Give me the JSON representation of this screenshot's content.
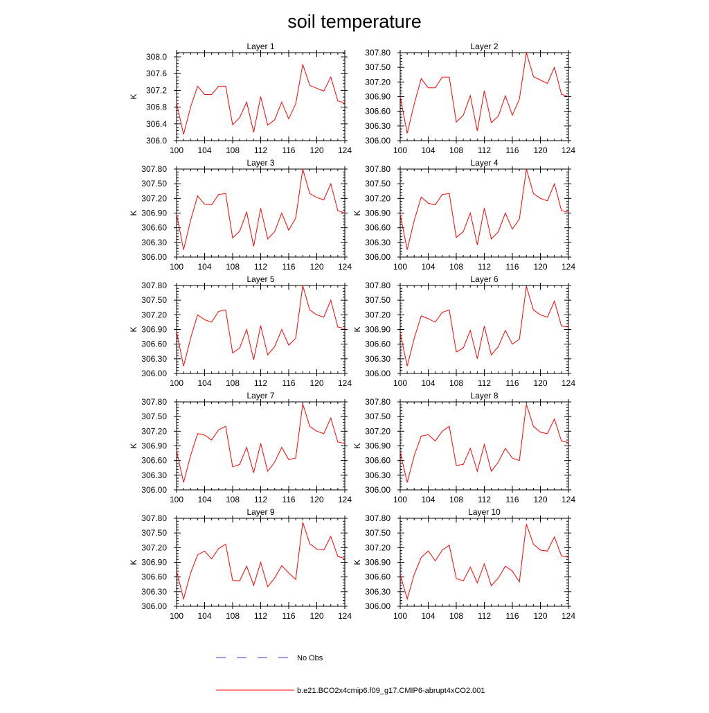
{
  "title": "soil temperature",
  "legend": [
    {
      "label": "No Obs",
      "color": "#3a3ad0",
      "style": "dashed"
    },
    {
      "label": "b.e21.BCO2x4cmip6.f09_g17.CMIP6-abrupt4xCO2.001",
      "color": "#ff0000",
      "style": "solid"
    }
  ],
  "chart_data": [
    {
      "type": "line",
      "title": "Layer 1",
      "ylabel": "K",
      "xlim": [
        100,
        124
      ],
      "ylim": [
        306.0,
        308.1
      ],
      "xticks": [
        "100",
        "104",
        "108",
        "112",
        "116",
        "120",
        "124"
      ],
      "yticks": [
        "306.0",
        "306.4",
        "306.8",
        "307.2",
        "307.6",
        "308.0"
      ],
      "x": [
        100,
        101,
        102,
        103,
        104,
        105,
        106,
        107,
        108,
        109,
        110,
        111,
        112,
        113,
        114,
        115,
        116,
        117,
        118,
        119,
        120,
        121,
        122,
        123,
        124
      ],
      "series": [
        {
          "name": "b.e21.BCO2x4cmip6.f09_g17.CMIP6-abrupt4xCO2.001",
          "color": "#ff0000",
          "values": [
            306.9,
            306.15,
            306.8,
            307.3,
            307.1,
            307.1,
            307.3,
            307.3,
            306.38,
            306.55,
            306.92,
            306.2,
            307.05,
            306.37,
            306.5,
            306.92,
            306.52,
            306.88,
            307.82,
            307.32,
            307.25,
            307.18,
            307.52,
            306.95,
            306.9
          ]
        }
      ]
    },
    {
      "type": "line",
      "title": "Layer 2",
      "ylabel": "",
      "xlim": [
        100,
        124
      ],
      "ylim": [
        306.0,
        307.8
      ],
      "xticks": [
        "100",
        "104",
        "108",
        "112",
        "116",
        "120",
        "124"
      ],
      "yticks": [
        "306.00",
        "306.30",
        "306.60",
        "306.90",
        "307.20",
        "307.50",
        "307.80"
      ],
      "x": [
        100,
        101,
        102,
        103,
        104,
        105,
        106,
        107,
        108,
        109,
        110,
        111,
        112,
        113,
        114,
        115,
        116,
        117,
        118,
        119,
        120,
        121,
        122,
        123,
        124
      ],
      "series": [
        {
          "name": "b.e21.BCO2x4cmip6.f09_g17.CMIP6-abrupt4xCO2.001",
          "color": "#ff0000",
          "values": [
            306.9,
            306.15,
            306.75,
            307.27,
            307.08,
            307.08,
            307.3,
            307.3,
            306.38,
            306.52,
            306.92,
            306.2,
            307.02,
            306.37,
            306.5,
            306.92,
            306.52,
            306.85,
            307.8,
            307.31,
            307.24,
            307.17,
            307.5,
            306.95,
            306.9
          ]
        }
      ]
    },
    {
      "type": "line",
      "title": "Layer 3",
      "ylabel": "K",
      "xlim": [
        100,
        124
      ],
      "ylim": [
        306.0,
        307.8
      ],
      "xticks": [
        "100",
        "104",
        "108",
        "112",
        "116",
        "120",
        "124"
      ],
      "yticks": [
        "306.00",
        "306.30",
        "306.60",
        "306.90",
        "307.20",
        "307.50",
        "307.80"
      ],
      "x": [
        100,
        101,
        102,
        103,
        104,
        105,
        106,
        107,
        108,
        109,
        110,
        111,
        112,
        113,
        114,
        115,
        116,
        117,
        118,
        119,
        120,
        121,
        122,
        123,
        124
      ],
      "series": [
        {
          "name": "b.e21.BCO2x4cmip6.f09_g17.CMIP6-abrupt4xCO2.001",
          "color": "#ff0000",
          "values": [
            306.88,
            306.15,
            306.75,
            307.25,
            307.08,
            307.07,
            307.28,
            307.3,
            306.39,
            306.53,
            306.92,
            306.22,
            307.0,
            306.37,
            306.52,
            306.9,
            306.55,
            306.8,
            307.8,
            307.3,
            307.22,
            307.17,
            307.5,
            306.95,
            306.9
          ]
        }
      ]
    },
    {
      "type": "line",
      "title": "Layer 4",
      "ylabel": "K",
      "xlim": [
        100,
        124
      ],
      "ylim": [
        306.0,
        307.8
      ],
      "xticks": [
        "100",
        "104",
        "108",
        "112",
        "116",
        "120",
        "124"
      ],
      "yticks": [
        "306.00",
        "306.30",
        "306.60",
        "306.90",
        "307.20",
        "307.50",
        "307.80"
      ],
      "x": [
        100,
        101,
        102,
        103,
        104,
        105,
        106,
        107,
        108,
        109,
        110,
        111,
        112,
        113,
        114,
        115,
        116,
        117,
        118,
        119,
        120,
        121,
        122,
        123,
        124
      ],
      "series": [
        {
          "name": "b.e21.BCO2x4cmip6.f09_g17.CMIP6-abrupt4xCO2.001",
          "color": "#ff0000",
          "values": [
            306.87,
            306.15,
            306.75,
            307.23,
            307.1,
            307.07,
            307.28,
            307.3,
            306.4,
            306.52,
            306.9,
            306.25,
            307.0,
            306.37,
            306.52,
            306.9,
            306.57,
            306.78,
            307.8,
            307.3,
            307.2,
            307.15,
            307.5,
            306.95,
            306.92
          ]
        }
      ]
    },
    {
      "type": "line",
      "title": "Layer 5",
      "ylabel": "K",
      "xlim": [
        100,
        124
      ],
      "ylim": [
        306.0,
        307.8
      ],
      "xticks": [
        "100",
        "104",
        "108",
        "112",
        "116",
        "120",
        "124"
      ],
      "yticks": [
        "306.00",
        "306.30",
        "306.60",
        "306.90",
        "307.20",
        "307.50",
        "307.80"
      ],
      "x": [
        100,
        101,
        102,
        103,
        104,
        105,
        106,
        107,
        108,
        109,
        110,
        111,
        112,
        113,
        114,
        115,
        116,
        117,
        118,
        119,
        120,
        121,
        122,
        123,
        124
      ],
      "series": [
        {
          "name": "b.e21.BCO2x4cmip6.f09_g17.CMIP6-abrupt4xCO2.001",
          "color": "#ff0000",
          "values": [
            306.85,
            306.15,
            306.72,
            307.2,
            307.1,
            307.05,
            307.27,
            307.3,
            306.42,
            306.52,
            306.9,
            306.28,
            306.98,
            306.38,
            306.55,
            306.9,
            306.58,
            306.72,
            307.8,
            307.3,
            307.2,
            307.15,
            307.5,
            306.95,
            306.92
          ]
        }
      ]
    },
    {
      "type": "line",
      "title": "Layer 6",
      "ylabel": "K",
      "xlim": [
        100,
        124
      ],
      "ylim": [
        306.0,
        307.8
      ],
      "xticks": [
        "100",
        "104",
        "108",
        "112",
        "116",
        "120",
        "124"
      ],
      "yticks": [
        "306.00",
        "306.30",
        "306.60",
        "306.90",
        "307.20",
        "307.50",
        "307.80"
      ],
      "x": [
        100,
        101,
        102,
        103,
        104,
        105,
        106,
        107,
        108,
        109,
        110,
        111,
        112,
        113,
        114,
        115,
        116,
        117,
        118,
        119,
        120,
        121,
        122,
        123,
        124
      ],
      "series": [
        {
          "name": "b.e21.BCO2x4cmip6.f09_g17.CMIP6-abrupt4xCO2.001",
          "color": "#ff0000",
          "values": [
            306.83,
            306.15,
            306.72,
            307.18,
            307.12,
            307.05,
            307.25,
            307.3,
            306.44,
            306.52,
            306.88,
            306.3,
            306.97,
            306.38,
            306.55,
            306.88,
            306.6,
            306.7,
            307.78,
            307.3,
            307.2,
            307.15,
            307.48,
            306.97,
            306.95
          ]
        }
      ]
    },
    {
      "type": "line",
      "title": "Layer 7",
      "ylabel": "K",
      "xlim": [
        100,
        124
      ],
      "ylim": [
        306.0,
        307.8
      ],
      "xticks": [
        "100",
        "104",
        "108",
        "112",
        "116",
        "120",
        "124"
      ],
      "yticks": [
        "306.00",
        "306.30",
        "306.60",
        "306.90",
        "307.20",
        "307.50",
        "307.80"
      ],
      "x": [
        100,
        101,
        102,
        103,
        104,
        105,
        106,
        107,
        108,
        109,
        110,
        111,
        112,
        113,
        114,
        115,
        116,
        117,
        118,
        119,
        120,
        121,
        122,
        123,
        124
      ],
      "series": [
        {
          "name": "b.e21.BCO2x4cmip6.f09_g17.CMIP6-abrupt4xCO2.001",
          "color": "#ff0000",
          "values": [
            306.8,
            306.15,
            306.7,
            307.15,
            307.12,
            307.02,
            307.23,
            307.3,
            306.47,
            306.52,
            306.87,
            306.35,
            306.95,
            306.38,
            306.57,
            306.87,
            306.62,
            306.65,
            307.76,
            307.3,
            307.2,
            307.15,
            307.47,
            306.98,
            306.95
          ]
        }
      ]
    },
    {
      "type": "line",
      "title": "Layer 8",
      "ylabel": "K",
      "xlim": [
        100,
        124
      ],
      "ylim": [
        306.0,
        307.8
      ],
      "xticks": [
        "100",
        "104",
        "108",
        "112",
        "116",
        "120",
        "124"
      ],
      "yticks": [
        "306.00",
        "306.30",
        "306.60",
        "306.90",
        "307.20",
        "307.50",
        "307.80"
      ],
      "x": [
        100,
        101,
        102,
        103,
        104,
        105,
        106,
        107,
        108,
        109,
        110,
        111,
        112,
        113,
        114,
        115,
        116,
        117,
        118,
        119,
        120,
        121,
        122,
        123,
        124
      ],
      "series": [
        {
          "name": "b.e21.BCO2x4cmip6.f09_g17.CMIP6-abrupt4xCO2.001",
          "color": "#ff0000",
          "values": [
            306.77,
            306.15,
            306.7,
            307.1,
            307.13,
            307.0,
            307.2,
            307.3,
            306.5,
            306.52,
            306.85,
            306.38,
            306.93,
            306.38,
            306.57,
            306.85,
            306.65,
            306.6,
            307.75,
            307.3,
            307.18,
            307.15,
            307.45,
            307.0,
            306.97
          ]
        }
      ]
    },
    {
      "type": "line",
      "title": "Layer 9",
      "ylabel": "K",
      "xlim": [
        100,
        124
      ],
      "ylim": [
        306.0,
        307.8
      ],
      "xticks": [
        "100",
        "104",
        "108",
        "112",
        "116",
        "120",
        "124"
      ],
      "yticks": [
        "306.00",
        "306.30",
        "306.60",
        "306.90",
        "307.20",
        "307.50",
        "307.80"
      ],
      "x": [
        100,
        101,
        102,
        103,
        104,
        105,
        106,
        107,
        108,
        109,
        110,
        111,
        112,
        113,
        114,
        115,
        116,
        117,
        118,
        119,
        120,
        121,
        122,
        123,
        124
      ],
      "series": [
        {
          "name": "b.e21.BCO2x4cmip6.f09_g17.CMIP6-abrupt4xCO2.001",
          "color": "#ff0000",
          "values": [
            306.72,
            306.15,
            306.68,
            307.05,
            307.13,
            306.97,
            307.18,
            307.27,
            306.53,
            306.52,
            306.82,
            306.43,
            306.9,
            306.4,
            306.58,
            306.83,
            306.68,
            306.55,
            307.72,
            307.28,
            307.17,
            307.15,
            307.43,
            307.02,
            306.98
          ]
        }
      ]
    },
    {
      "type": "line",
      "title": "Layer 10",
      "ylabel": "K",
      "xlim": [
        100,
        124
      ],
      "ylim": [
        306.0,
        307.8
      ],
      "xticks": [
        "100",
        "104",
        "108",
        "112",
        "116",
        "120",
        "124"
      ],
      "yticks": [
        "306.00",
        "306.30",
        "306.60",
        "306.90",
        "307.20",
        "307.50",
        "307.80"
      ],
      "x": [
        100,
        101,
        102,
        103,
        104,
        105,
        106,
        107,
        108,
        109,
        110,
        111,
        112,
        113,
        114,
        115,
        116,
        117,
        118,
        119,
        120,
        121,
        122,
        123,
        124
      ],
      "series": [
        {
          "name": "b.e21.BCO2x4cmip6.f09_g17.CMIP6-abrupt4xCO2.001",
          "color": "#ff0000",
          "values": [
            306.65,
            306.15,
            306.65,
            307.0,
            307.13,
            306.93,
            307.15,
            307.25,
            306.57,
            306.52,
            306.8,
            306.48,
            306.87,
            306.42,
            306.58,
            306.82,
            306.72,
            306.5,
            307.68,
            307.27,
            307.15,
            307.13,
            307.42,
            307.03,
            307.0
          ]
        }
      ]
    }
  ]
}
